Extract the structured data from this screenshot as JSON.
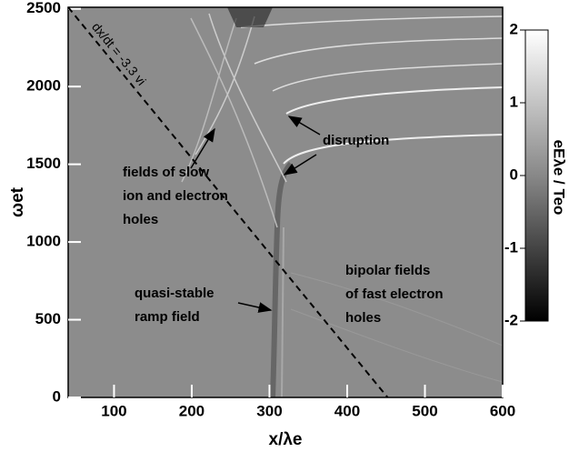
{
  "chart_data": {
    "type": "heatmap",
    "xlabel": "x/λe",
    "ylabel": "ωet",
    "xlim": [
      41,
      600
    ],
    "ylim": [
      0,
      2510
    ],
    "xticks": [
      100,
      200,
      300,
      400,
      500,
      600
    ],
    "yticks": [
      0,
      500,
      1000,
      1500,
      2000,
      2500
    ],
    "colorbar": {
      "label": "eEλe / Teo",
      "clim": [
        -2,
        2
      ],
      "ticks": [
        -2,
        -1,
        0,
        1,
        2
      ]
    },
    "reference_line": {
      "label": "dx/dt = -3.3 vi",
      "x": [
        41,
        452
      ],
      "y": [
        2510,
        0
      ]
    },
    "annotations": [
      {
        "lines": [
          "fields of slow",
          "ion and electron",
          "holes"
        ]
      },
      {
        "lines": [
          "disruption"
        ]
      },
      {
        "lines": [
          "quasi-stable",
          "ramp field"
        ]
      },
      {
        "lines": [
          "bipolar fields",
          "of  fast electron",
          "holes"
        ]
      }
    ]
  }
}
